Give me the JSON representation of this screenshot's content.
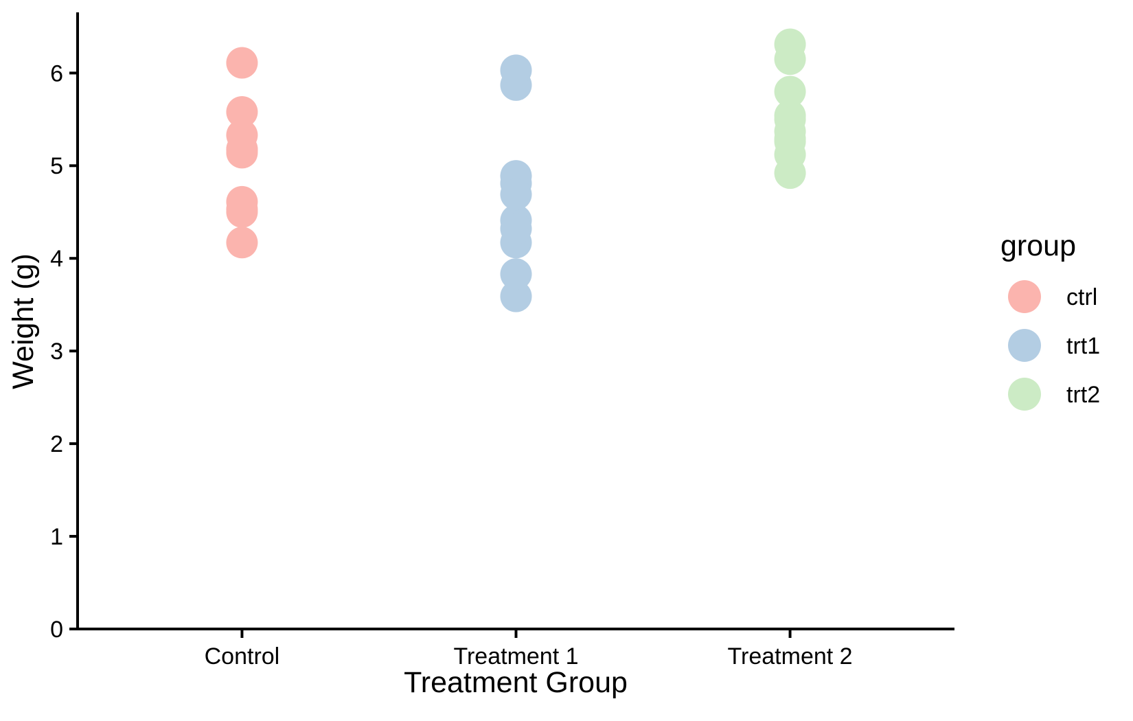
{
  "chart_data": {
    "type": "scatter",
    "title": "",
    "xlabel": "Treatment Group",
    "ylabel": "Weight (g)",
    "categories": [
      "Control",
      "Treatment 1",
      "Treatment 2"
    ],
    "y_ticks": [
      0,
      1,
      2,
      3,
      4,
      5,
      6
    ],
    "ylim": [
      0,
      6.64
    ],
    "grid": "off",
    "background": "#ffffff",
    "axis_color": "#000000",
    "legend": {
      "title": "group",
      "position": "right",
      "entries": [
        {
          "label": "ctrl",
          "color": "#FBB4AE"
        },
        {
          "label": "trt1",
          "color": "#B3CDE3"
        },
        {
          "label": "trt2",
          "color": "#CCEBC5"
        }
      ]
    },
    "series": [
      {
        "name": "ctrl",
        "category": "Control",
        "color": "#FBB4AE",
        "values": [
          4.17,
          5.58,
          5.18,
          6.11,
          4.5,
          4.61,
          5.17,
          4.53,
          5.33,
          5.14
        ]
      },
      {
        "name": "trt1",
        "category": "Treatment 1",
        "color": "#B3CDE3",
        "values": [
          4.81,
          4.17,
          4.41,
          3.59,
          5.87,
          3.83,
          6.03,
          4.89,
          4.32,
          4.69
        ]
      },
      {
        "name": "trt2",
        "category": "Treatment 2",
        "color": "#CCEBC5",
        "values": [
          6.31,
          5.12,
          5.54,
          5.5,
          5.37,
          5.29,
          4.92,
          6.15,
          5.8,
          5.26
        ]
      }
    ]
  }
}
